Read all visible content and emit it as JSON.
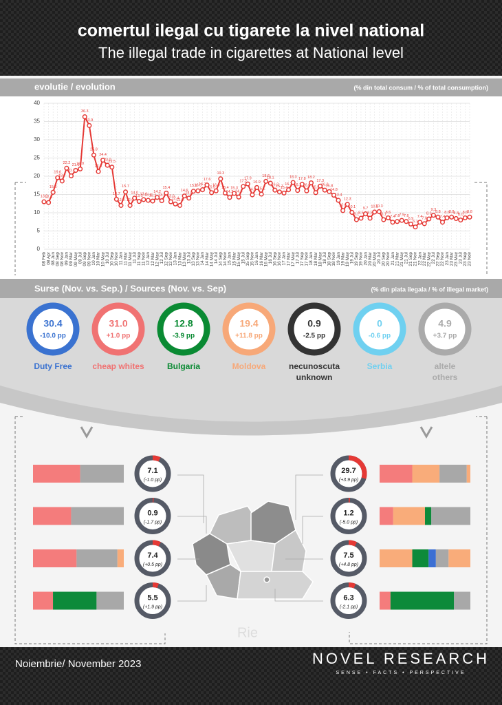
{
  "header": {
    "title": "comertul ilegal cu tigarete la nivel national",
    "subtitle": "The illegal trade in cigarettes at National level"
  },
  "chart_data": [
    {
      "type": "line",
      "title": "evolutie / evolution",
      "note": "(% din total consum / % of total consumption)",
      "color": "#e53935",
      "categories": [
        "08 Feb",
        "08 Apr",
        "08 Jun",
        "08 Sep",
        "08 Nov",
        "09 Jan",
        "09 Mar",
        "09 May",
        "09 Jul",
        "09 Sep",
        "09 Nov",
        "10 Jan",
        "10 Mar",
        "10 May",
        "10 Jul",
        "10 Sep",
        "10 Nov",
        "11 Jan",
        "11 Mar",
        "11 May",
        "11 Jul",
        "11 Sep",
        "11 Nov",
        "12 Jan",
        "12 Mar",
        "12 May",
        "12 Jul",
        "12 Sep",
        "12 Nov",
        "13 Jan",
        "13 Mar",
        "13 May",
        "13 Jul",
        "13 Sep",
        "13 Nov",
        "14 Jan",
        "14 Mar",
        "14 May",
        "14 Jul",
        "14 Sep",
        "14 Nov",
        "15 Jan",
        "15 Mar",
        "15 May",
        "15 Jul",
        "15 Sep",
        "15 Nov",
        "16 Jan",
        "16 Mar",
        "16 May",
        "16 Jul",
        "16 Sep",
        "16 Nov",
        "17 Jan",
        "17 Mar",
        "17 May",
        "17 Jul",
        "17 Sep",
        "17 Nov",
        "18 Jan",
        "18 Mar",
        "18 May",
        "18 Jul",
        "18 Sep",
        "18 Nov",
        "19 Jan",
        "19 Mar",
        "19 May",
        "19 Jul",
        "19 Sep",
        "19 Nov",
        "20 Jan",
        "20 Mar",
        "20 May",
        "20 Jul",
        "20 Sep",
        "20 Nov",
        "21 Jan",
        "21 Mar",
        "21 May",
        "21 Jul",
        "21 Sep",
        "21 Nov",
        "22 Jan",
        "22 Mar",
        "22 May",
        "22 Jul",
        "22 Sep",
        "22 Nov",
        "23 Jan",
        "23 Mar",
        "23 May",
        "23 Jul",
        "23 Sep",
        "23 Nov"
      ],
      "values": [
        13.0,
        12.8,
        15.6,
        19.6,
        18.7,
        22.2,
        20.1,
        21.6,
        22.0,
        36.3,
        33.9,
        25.8,
        21.3,
        24.4,
        23.0,
        22.5,
        13.7,
        12.0,
        15.7,
        12.0,
        14.0,
        13.1,
        13.6,
        13.4,
        13.2,
        14.2,
        13.3,
        15.4,
        13.0,
        12.4,
        12.0,
        14.6,
        14.0,
        15.9,
        16.0,
        16.3,
        17.6,
        15.5,
        16.0,
        19.3,
        15.4,
        14.2,
        15.3,
        14.3,
        17.2,
        17.9,
        14.9,
        16.9,
        15.1,
        18.6,
        18.1,
        16.2,
        15.7,
        15.4,
        16.3,
        18.3,
        16.1,
        17.8,
        16.0,
        18.2,
        15.5,
        17.3,
        16.2,
        15.8,
        14.8,
        13.4,
        10.6,
        12.3,
        10.1,
        8.1,
        8.5,
        9.7,
        8.5,
        10.2,
        10.3,
        8.1,
        8.6,
        7.4,
        7.6,
        7.9,
        7.6,
        6.9,
        6.1,
        7.4,
        7.0,
        8.3,
        9.3,
        8.8,
        7.4,
        8.6,
        8.8,
        8.4,
        8.0,
        8.6,
        8.8
      ],
      "value_labels": [
        "13.0",
        "12.8",
        "15.6",
        "19.6",
        "18.7",
        "22.2",
        "20.1",
        "21.6",
        "22.0",
        "36.3",
        "33.9",
        "25.8",
        "21.3",
        "24.4",
        "23.0",
        "22.5",
        "13.7",
        "12.0",
        "15.7",
        "12.0",
        "14.0",
        "13.1",
        "13.6",
        "13.4",
        "13.2",
        "14.2",
        "13.3",
        "15.4",
        "13.0",
        "12.4",
        "12.0",
        "14.6",
        "14.0",
        "15.9",
        "16.0",
        "16.3",
        "17.6",
        "15.5",
        "16.0",
        "19.3",
        "15.4",
        "14.2",
        "15.3",
        "14.3",
        "17.2",
        "17.9",
        "14.9",
        "16.9",
        "15.1",
        "18.6",
        "18.1",
        "16.2",
        "15.7",
        "15.4",
        "16.3",
        "18.3",
        "16.1",
        "17.8",
        "16.0",
        "18.2",
        "15.5",
        "17.3",
        "16.2",
        "15.8",
        "14.8",
        "13.4",
        "10.6",
        "12.3",
        "10.1",
        "8.1",
        "8.5",
        "9.7",
        "8.5",
        "10.2",
        "10.3",
        "8.1",
        "8.6",
        "7.4",
        "7.6",
        "7.9",
        "7.6",
        "6.9",
        "6.1",
        "7.4",
        "7.0",
        "8.3",
        "9.3",
        "8.8",
        "7.4",
        "8.6",
        "8.8",
        "8.4",
        "8.0",
        "8.6",
        "8.8"
      ],
      "ylim": [
        0,
        40
      ],
      "yticks": [
        0,
        5,
        10,
        15,
        20,
        25,
        30,
        35,
        40
      ],
      "grid": true
    },
    {
      "type": "donut",
      "title": "Surse (Nov. vs. Sep.) / Sources (Nov. vs. Sep)",
      "note": "(% din piata ilegala / % of illegal market)",
      "items": [
        {
          "value": 30.4,
          "value_label": "30.4",
          "change": "-10.0 pp",
          "label": [
            "Duty Free"
          ],
          "color": "#3a72d0"
        },
        {
          "value": 31.0,
          "value_label": "31.0",
          "change": "+1.0 pp",
          "label": [
            "cheap whites"
          ],
          "color": "#f07272"
        },
        {
          "value": 12.8,
          "change": "-3.9 pp",
          "label": [
            "Bulgaria"
          ],
          "color": "#0a8a33"
        },
        {
          "value": 19.4,
          "change": "+11.8 pp",
          "label": [
            "Moldova"
          ],
          "color": "#f7a878"
        },
        {
          "value": 0.9,
          "change": "-2.5 pp",
          "label": [
            "necunoscuta",
            "unknown"
          ],
          "color": "#333333"
        },
        {
          "value": 0,
          "change": "-0.6 pp",
          "label": [
            "Serbia"
          ],
          "color": "#6fd0f0"
        },
        {
          "value": 4.9,
          "change": "+3.7 pp",
          "label": [
            "altele",
            "others"
          ],
          "color": "#aaaaaa"
        }
      ]
    },
    {
      "type": "gauge",
      "color": "#e53935",
      "regions": [
        {
          "value": 7.1,
          "change": "(-1.0 pp)",
          "shares": [
            {
              "color": "#f47c7c",
              "value": 52
            },
            {
              "color": "#a8a8a8",
              "value": 48
            }
          ]
        },
        {
          "value": 0.9,
          "change": "(-1.7 pp)",
          "shares": [
            {
              "color": "#f47c7c",
              "value": 42
            },
            {
              "color": "#a8a8a8",
              "value": 58
            }
          ]
        },
        {
          "value": 7.4,
          "change": "(+0.5 pp)",
          "shares": [
            {
              "color": "#f47c7c",
              "value": 48
            },
            {
              "color": "#a8a8a8",
              "value": 45
            },
            {
              "color": "#f9ac7a",
              "value": 7
            }
          ]
        },
        {
          "value": 5.5,
          "change": "(+1.9 pp)",
          "shares": [
            {
              "color": "#f47c7c",
              "value": 22
            },
            {
              "color": "#0d8a3a",
              "value": 48
            },
            {
              "color": "#a8a8a8",
              "value": 30
            }
          ]
        },
        {
          "value": 29.7,
          "change": "(+3.9 pp)",
          "shares": [
            {
              "color": "#f47c7c",
              "value": 36
            },
            {
              "color": "#f9ac7a",
              "value": 30
            },
            {
              "color": "#a8a8a8",
              "value": 30
            },
            {
              "color": "#f9ac7a",
              "value": 4
            }
          ]
        },
        {
          "value": 1.2,
          "change": "(-5.0 pp)",
          "shares": [
            {
              "color": "#f47c7c",
              "value": 15
            },
            {
              "color": "#f9ac7a",
              "value": 35
            },
            {
              "color": "#0d8a3a",
              "value": 7
            },
            {
              "color": "#a8a8a8",
              "value": 43
            }
          ]
        },
        {
          "value": 7.5,
          "change": "(+4.8 pp)",
          "shares": [
            {
              "color": "#f9ac7a",
              "value": 36
            },
            {
              "color": "#0d8a3a",
              "value": 18
            },
            {
              "color": "#3b6fd3",
              "value": 8
            },
            {
              "color": "#a8a8a8",
              "value": 14
            },
            {
              "color": "#f9ac7a",
              "value": 24
            }
          ]
        },
        {
          "value": 6.3,
          "change": "(-2.1 pp)",
          "shares": [
            {
              "color": "#f47c7c",
              "value": 12
            },
            {
              "color": "#0d8a3a",
              "value": 70
            },
            {
              "color": "#a8a8a8",
              "value": 18
            }
          ]
        }
      ]
    }
  ],
  "watermark": "Rie",
  "footer": {
    "date": "Noiembrie/ November 2023",
    "brand": "NOVEL RESEARCH",
    "tagline": "SENSE • FACTS • PERSPECTIVE"
  }
}
